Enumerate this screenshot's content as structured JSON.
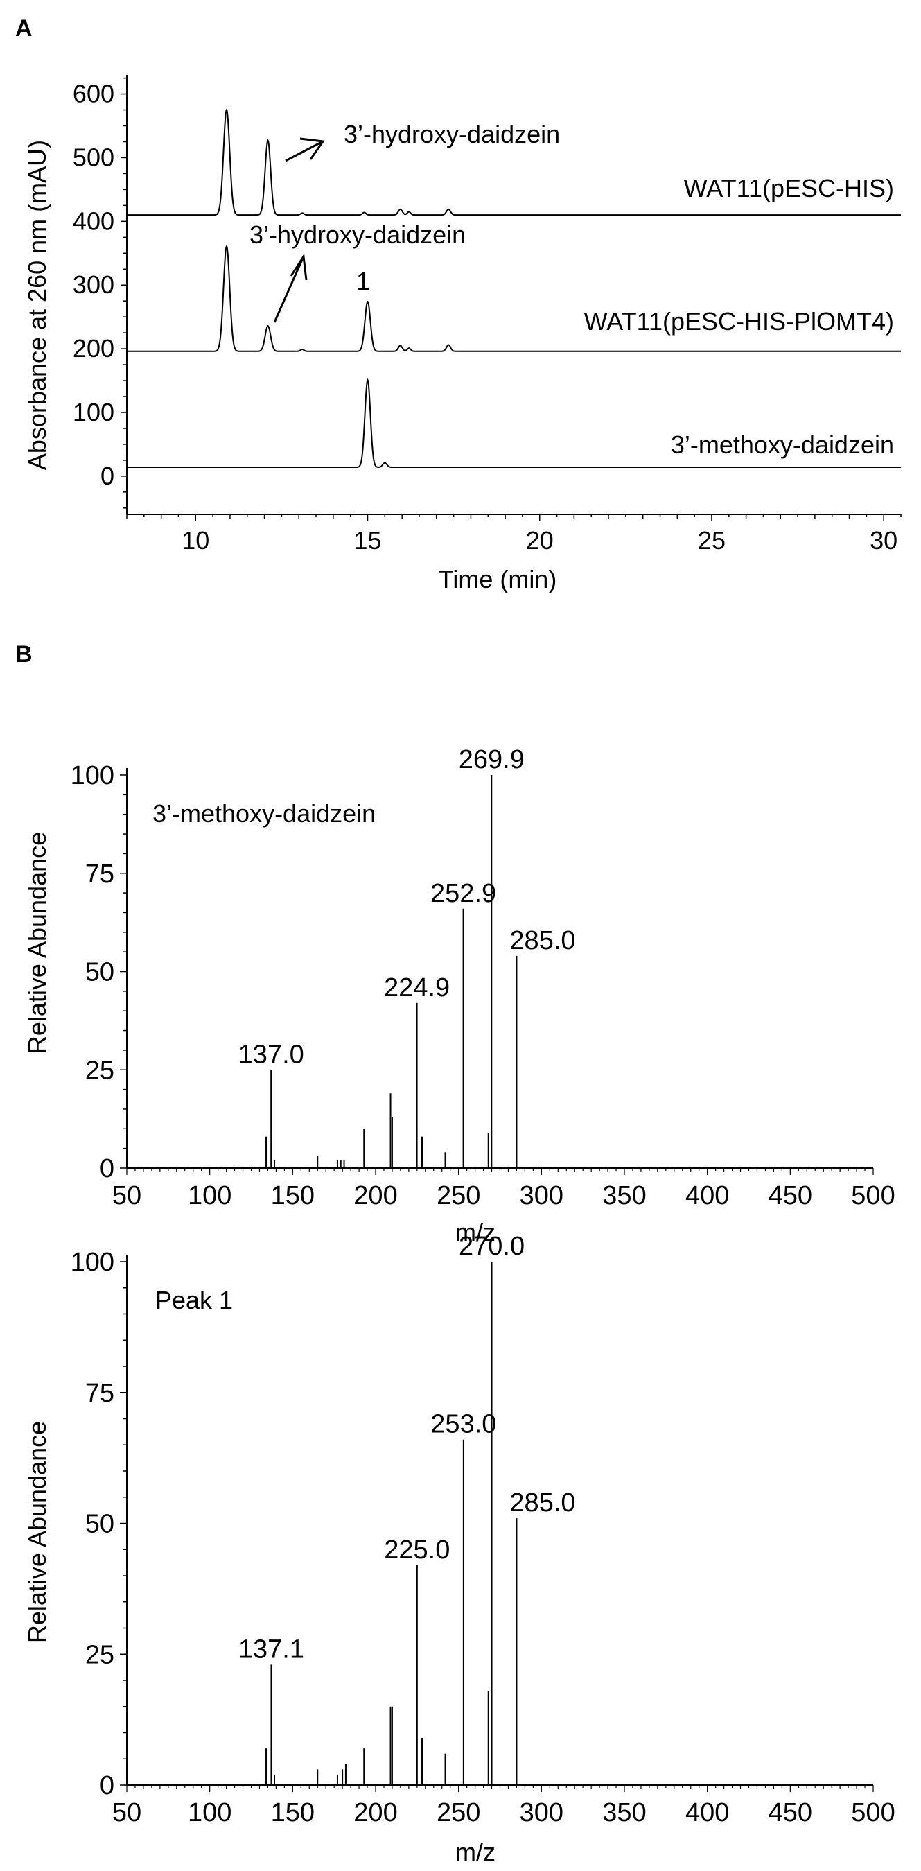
{
  "panel_labels": {
    "a": "A",
    "b": "B"
  },
  "chart_data": [
    {
      "type": "line",
      "panel": "A",
      "xlabel": "Time (min)",
      "ylabel": "Absorbance at 260 nm (mAU)",
      "xlim": [
        8,
        30.5
      ],
      "ylim": [
        -60,
        630
      ],
      "xticks": [
        10,
        15,
        20,
        25,
        30
      ],
      "yticks": [
        0,
        100,
        200,
        300,
        400,
        500,
        600
      ],
      "grid": false,
      "series": [
        {
          "name": "WAT11(pESC-HIS)",
          "baseline": 410,
          "peaks": [
            {
              "x": 10.9,
              "height": 165,
              "width": 0.09
            },
            {
              "x": 12.1,
              "height": 117,
              "width": 0.08
            },
            {
              "x": 13.1,
              "height": 3,
              "width": 0.05
            },
            {
              "x": 14.9,
              "height": 4,
              "width": 0.05
            },
            {
              "x": 15.95,
              "height": 9,
              "width": 0.06
            },
            {
              "x": 16.2,
              "height": 5,
              "width": 0.05
            },
            {
              "x": 17.35,
              "height": 9,
              "width": 0.06
            }
          ]
        },
        {
          "name": "WAT11(pESC-HIS-PlOMT4)",
          "baseline": 196,
          "peaks": [
            {
              "x": 10.9,
              "height": 165,
              "width": 0.09
            },
            {
              "x": 12.1,
              "height": 40,
              "width": 0.08
            },
            {
              "x": 13.1,
              "height": 3,
              "width": 0.05
            },
            {
              "x": 15.0,
              "height": 78,
              "width": 0.08
            },
            {
              "x": 15.95,
              "height": 9,
              "width": 0.06
            },
            {
              "x": 16.2,
              "height": 5,
              "width": 0.05
            },
            {
              "x": 17.35,
              "height": 10,
              "width": 0.06
            }
          ]
        },
        {
          "name": "3’-methoxy-daidzein",
          "baseline": 14,
          "peaks": [
            {
              "x": 15.0,
              "height": 137,
              "width": 0.08
            },
            {
              "x": 15.5,
              "height": 7,
              "width": 0.06
            }
          ]
        }
      ],
      "annotations": [
        {
          "text": "3’-hydroxy-daidzein",
          "target": "WAT11(pESC-HIS) peak at 12.1 min"
        },
        {
          "text": "3’-hydroxy-daidzein",
          "target": "WAT11(pESC-HIS-PlOMT4) peak at 12.1 min"
        },
        {
          "text": "1",
          "target": "WAT11(pESC-HIS-PlOMT4) peak at 15.0 min"
        }
      ],
      "trace_labels": [
        "WAT11(pESC-HIS)",
        "WAT11(pESC-HIS-PlOMT4)",
        "3’-methoxy-daidzein"
      ]
    },
    {
      "type": "bar",
      "panel": "B-top",
      "title": "3’-methoxy-daidzein",
      "xlabel": "m/z",
      "ylabel": "Relative Abundance",
      "xlim": [
        50,
        500
      ],
      "ylim": [
        0,
        100
      ],
      "xticks": [
        50,
        100,
        150,
        200,
        250,
        300,
        350,
        400,
        450,
        500
      ],
      "yticks": [
        0,
        25,
        50,
        75,
        100
      ],
      "labeled_peaks": [
        {
          "mz": 137.0,
          "label": "137.0"
        },
        {
          "mz": 224.9,
          "label": "224.9"
        },
        {
          "mz": 252.9,
          "label": "252.9"
        },
        {
          "mz": 269.9,
          "label": "269.9"
        },
        {
          "mz": 285.0,
          "label": "285.0"
        }
      ],
      "peaks": [
        {
          "mz": 134.0,
          "value": 8
        },
        {
          "mz": 137.0,
          "value": 25
        },
        {
          "mz": 139.0,
          "value": 2
        },
        {
          "mz": 165.0,
          "value": 3
        },
        {
          "mz": 177.0,
          "value": 2
        },
        {
          "mz": 179.0,
          "value": 2
        },
        {
          "mz": 181.0,
          "value": 2
        },
        {
          "mz": 193.0,
          "value": 10
        },
        {
          "mz": 209.0,
          "value": 19
        },
        {
          "mz": 210.0,
          "value": 13
        },
        {
          "mz": 224.9,
          "value": 42
        },
        {
          "mz": 228.0,
          "value": 8
        },
        {
          "mz": 242.0,
          "value": 4
        },
        {
          "mz": 252.9,
          "value": 66
        },
        {
          "mz": 268.0,
          "value": 9
        },
        {
          "mz": 269.9,
          "value": 100
        },
        {
          "mz": 285.0,
          "value": 54
        }
      ]
    },
    {
      "type": "bar",
      "panel": "B-bottom",
      "title": "Peak 1",
      "xlabel": "m/z",
      "ylabel": "Relative Abundance",
      "xlim": [
        50,
        500
      ],
      "ylim": [
        0,
        100
      ],
      "xticks": [
        50,
        100,
        150,
        200,
        250,
        300,
        350,
        400,
        450,
        500
      ],
      "yticks": [
        0,
        25,
        50,
        75,
        100
      ],
      "labeled_peaks": [
        {
          "mz": 137.1,
          "label": "137.1"
        },
        {
          "mz": 225.0,
          "label": "225.0"
        },
        {
          "mz": 253.0,
          "label": "253.0"
        },
        {
          "mz": 270.0,
          "label": "270.0"
        },
        {
          "mz": 285.0,
          "label": "285.0"
        }
      ],
      "peaks": [
        {
          "mz": 134.0,
          "value": 7
        },
        {
          "mz": 137.1,
          "value": 23
        },
        {
          "mz": 139.0,
          "value": 2
        },
        {
          "mz": 165.0,
          "value": 3
        },
        {
          "mz": 177.0,
          "value": 2
        },
        {
          "mz": 180.0,
          "value": 3
        },
        {
          "mz": 182.0,
          "value": 4
        },
        {
          "mz": 193.0,
          "value": 7
        },
        {
          "mz": 209.0,
          "value": 15
        },
        {
          "mz": 210.0,
          "value": 15
        },
        {
          "mz": 225.0,
          "value": 42
        },
        {
          "mz": 228.0,
          "value": 9
        },
        {
          "mz": 242.0,
          "value": 6
        },
        {
          "mz": 253.0,
          "value": 66
        },
        {
          "mz": 268.0,
          "value": 18
        },
        {
          "mz": 270.0,
          "value": 100
        },
        {
          "mz": 285.0,
          "value": 51
        }
      ]
    }
  ]
}
